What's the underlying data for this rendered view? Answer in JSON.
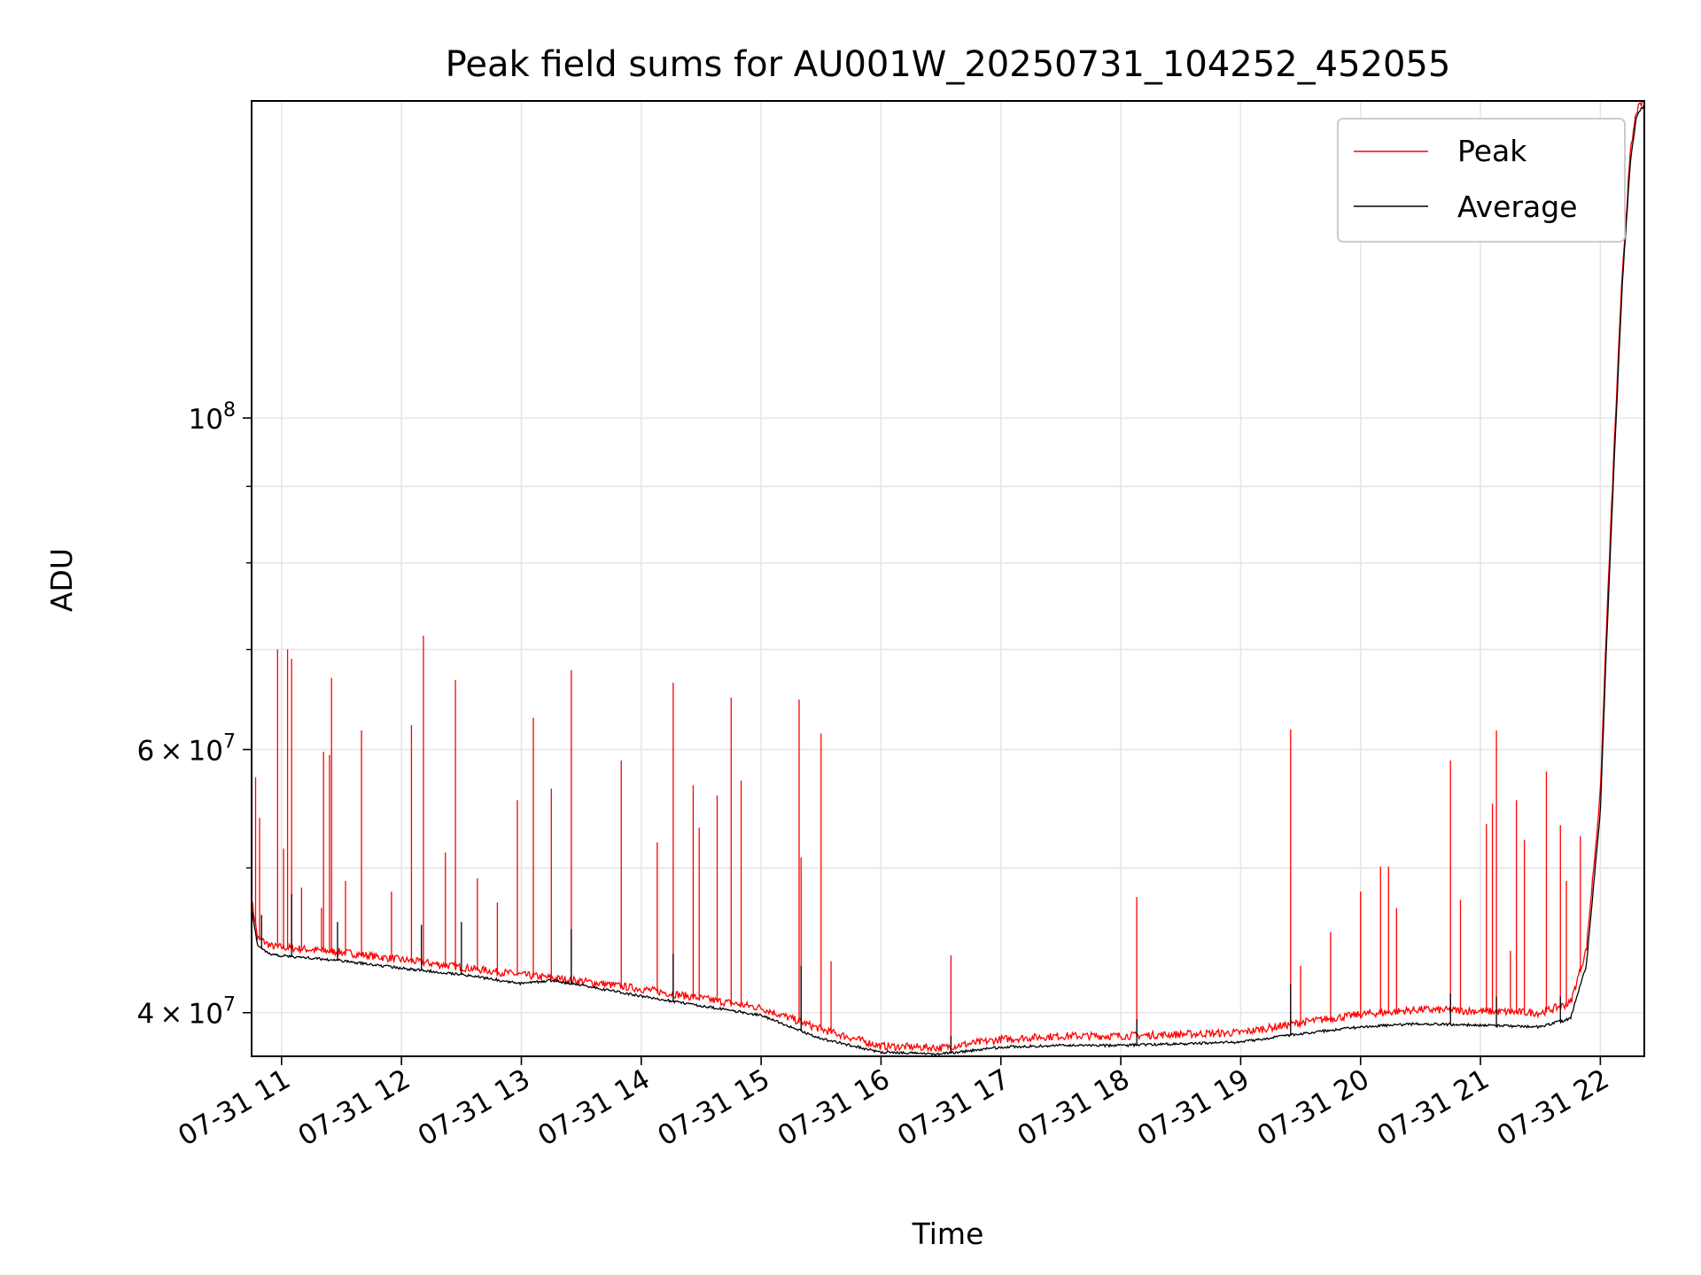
{
  "chart_data": {
    "type": "line",
    "title": "Peak field sums for AU001W_20250731_104252_452055",
    "xlabel": "Time",
    "ylabel": "ADU",
    "y_scale": "log",
    "grid": true,
    "legend_position": "top-right",
    "x_range": [
      "2025-07-31 10:45",
      "2025-07-31 22:22"
    ],
    "ylim": [
      37400000,
      163000000
    ],
    "x_ticks": [
      {
        "t": "2025-07-31 11:00",
        "label": "07-31 11"
      },
      {
        "t": "2025-07-31 12:00",
        "label": "07-31 12"
      },
      {
        "t": "2025-07-31 13:00",
        "label": "07-31 13"
      },
      {
        "t": "2025-07-31 14:00",
        "label": "07-31 14"
      },
      {
        "t": "2025-07-31 15:00",
        "label": "07-31 15"
      },
      {
        "t": "2025-07-31 16:00",
        "label": "07-31 16"
      },
      {
        "t": "2025-07-31 17:00",
        "label": "07-31 17"
      },
      {
        "t": "2025-07-31 18:00",
        "label": "07-31 18"
      },
      {
        "t": "2025-07-31 19:00",
        "label": "07-31 19"
      },
      {
        "t": "2025-07-31 20:00",
        "label": "07-31 20"
      },
      {
        "t": "2025-07-31 21:00",
        "label": "07-31 21"
      },
      {
        "t": "2025-07-31 22:00",
        "label": "07-31 22"
      }
    ],
    "y_major_ticks": [
      {
        "value": 40000000,
        "mantissa": "4",
        "exp": "7"
      },
      {
        "value": 60000000,
        "mantissa": "6",
        "exp": "7"
      },
      {
        "value": 100000000,
        "mantissa": "",
        "exp": "8"
      }
    ],
    "y_minor_ticks": [
      50000000,
      70000000,
      80000000,
      90000000
    ],
    "series": [
      {
        "name": "Peak",
        "color": "#ff0000",
        "baseline": [
          [
            "2025-07-31 10:45",
            47500000
          ],
          [
            "2025-07-31 10:48",
            44800000
          ],
          [
            "2025-07-31 10:55",
            44200000
          ],
          [
            "2025-07-31 11:30",
            43800000
          ],
          [
            "2025-07-31 12:00",
            43300000
          ],
          [
            "2025-07-31 12:30",
            42800000
          ],
          [
            "2025-07-31 13:00",
            42300000
          ],
          [
            "2025-07-31 13:30",
            41900000
          ],
          [
            "2025-07-31 14:00",
            41400000
          ],
          [
            "2025-07-31 14:30",
            40800000
          ],
          [
            "2025-07-31 15:00",
            40200000
          ],
          [
            "2025-07-31 15:30",
            38900000
          ],
          [
            "2025-07-31 16:00",
            37900000
          ],
          [
            "2025-07-31 16:30",
            37800000
          ],
          [
            "2025-07-31 17:00",
            38300000
          ],
          [
            "2025-07-31 17:30",
            38500000
          ],
          [
            "2025-07-31 18:00",
            38500000
          ],
          [
            "2025-07-31 18:30",
            38600000
          ],
          [
            "2025-07-31 19:00",
            38700000
          ],
          [
            "2025-07-31 19:30",
            39300000
          ],
          [
            "2025-07-31 20:00",
            39800000
          ],
          [
            "2025-07-31 20:30",
            40100000
          ],
          [
            "2025-07-31 21:00",
            40000000
          ],
          [
            "2025-07-31 21:30",
            39900000
          ],
          [
            "2025-07-31 21:45",
            40500000
          ],
          [
            "2025-07-31 21:53",
            44000000
          ],
          [
            "2025-07-31 22:00",
            56000000
          ],
          [
            "2025-07-31 22:03",
            72000000
          ],
          [
            "2025-07-31 22:07",
            96000000
          ],
          [
            "2025-07-31 22:11",
            125000000
          ],
          [
            "2025-07-31 22:15",
            150000000
          ],
          [
            "2025-07-31 22:18",
            160000000
          ],
          [
            "2025-07-31 22:22",
            163000000
          ]
        ],
        "spikes": [
          [
            "2025-07-31 10:47",
            57500000
          ],
          [
            "2025-07-31 10:49",
            54000000
          ],
          [
            "2025-07-31 10:58",
            70000000
          ],
          [
            "2025-07-31 11:01",
            51500000
          ],
          [
            "2025-07-31 11:03",
            70000000
          ],
          [
            "2025-07-31 11:05",
            69000000
          ],
          [
            "2025-07-31 11:10",
            48500000
          ],
          [
            "2025-07-31 11:20",
            47000000
          ],
          [
            "2025-07-31 11:21",
            59800000
          ],
          [
            "2025-07-31 11:24",
            59500000
          ],
          [
            "2025-07-31 11:25",
            67000000
          ],
          [
            "2025-07-31 11:32",
            49000000
          ],
          [
            "2025-07-31 11:40",
            61800000
          ],
          [
            "2025-07-31 11:55",
            48200000
          ],
          [
            "2025-07-31 12:05",
            62300000
          ],
          [
            "2025-07-31 12:11",
            71500000
          ],
          [
            "2025-07-31 12:22",
            51200000
          ],
          [
            "2025-07-31 12:27",
            66800000
          ],
          [
            "2025-07-31 12:38",
            49200000
          ],
          [
            "2025-07-31 12:48",
            47400000
          ],
          [
            "2025-07-31 12:58",
            55500000
          ],
          [
            "2025-07-31 13:06",
            63000000
          ],
          [
            "2025-07-31 13:15",
            56500000
          ],
          [
            "2025-07-31 13:25",
            67800000
          ],
          [
            "2025-07-31 13:50",
            59000000
          ],
          [
            "2025-07-31 14:08",
            52000000
          ],
          [
            "2025-07-31 14:16",
            66500000
          ],
          [
            "2025-07-31 14:26",
            56800000
          ],
          [
            "2025-07-31 14:29",
            53200000
          ],
          [
            "2025-07-31 14:38",
            55900000
          ],
          [
            "2025-07-31 14:45",
            65000000
          ],
          [
            "2025-07-31 14:50",
            57200000
          ],
          [
            "2025-07-31 15:19",
            64800000
          ],
          [
            "2025-07-31 15:20",
            50800000
          ],
          [
            "2025-07-31 15:30",
            61500000
          ],
          [
            "2025-07-31 15:35",
            43300000
          ],
          [
            "2025-07-31 16:35",
            43700000
          ],
          [
            "2025-07-31 18:08",
            47800000
          ],
          [
            "2025-07-31 19:25",
            61900000
          ],
          [
            "2025-07-31 19:30",
            43000000
          ],
          [
            "2025-07-31 19:45",
            45300000
          ],
          [
            "2025-07-31 20:00",
            48200000
          ],
          [
            "2025-07-31 20:10",
            50100000
          ],
          [
            "2025-07-31 20:14",
            50100000
          ],
          [
            "2025-07-31 20:18",
            47000000
          ],
          [
            "2025-07-31 20:45",
            59000000
          ],
          [
            "2025-07-31 20:50",
            47600000
          ],
          [
            "2025-07-31 21:03",
            53500000
          ],
          [
            "2025-07-31 21:06",
            55200000
          ],
          [
            "2025-07-31 21:08",
            61800000
          ],
          [
            "2025-07-31 21:15",
            44000000
          ],
          [
            "2025-07-31 21:18",
            55500000
          ],
          [
            "2025-07-31 21:22",
            52200000
          ],
          [
            "2025-07-31 21:33",
            58000000
          ],
          [
            "2025-07-31 21:40",
            53400000
          ],
          [
            "2025-07-31 21:43",
            49000000
          ],
          [
            "2025-07-31 21:50",
            52500000
          ]
        ]
      },
      {
        "name": "Average",
        "color": "#000000",
        "baseline": [
          [
            "2025-07-31 10:45",
            47000000
          ],
          [
            "2025-07-31 10:48",
            44300000
          ],
          [
            "2025-07-31 10:55",
            43700000
          ],
          [
            "2025-07-31 11:30",
            43300000
          ],
          [
            "2025-07-31 12:00",
            42800000
          ],
          [
            "2025-07-31 12:30",
            42400000
          ],
          [
            "2025-07-31 13:00",
            41800000
          ],
          [
            "2025-07-31 13:15",
            42000000
          ],
          [
            "2025-07-31 13:30",
            41700000
          ],
          [
            "2025-07-31 14:00",
            41000000
          ],
          [
            "2025-07-31 14:30",
            40400000
          ],
          [
            "2025-07-31 15:00",
            39800000
          ],
          [
            "2025-07-31 15:30",
            38400000
          ],
          [
            "2025-07-31 16:00",
            37600000
          ],
          [
            "2025-07-31 16:30",
            37500000
          ],
          [
            "2025-07-31 17:00",
            37900000
          ],
          [
            "2025-07-31 17:30",
            38000000
          ],
          [
            "2025-07-31 18:00",
            38000000
          ],
          [
            "2025-07-31 18:30",
            38100000
          ],
          [
            "2025-07-31 19:00",
            38200000
          ],
          [
            "2025-07-31 19:30",
            38700000
          ],
          [
            "2025-07-31 20:00",
            39100000
          ],
          [
            "2025-07-31 20:30",
            39300000
          ],
          [
            "2025-07-31 21:00",
            39200000
          ],
          [
            "2025-07-31 21:30",
            39100000
          ],
          [
            "2025-07-31 21:45",
            39600000
          ],
          [
            "2025-07-31 21:53",
            43000000
          ],
          [
            "2025-07-31 22:00",
            54500000
          ],
          [
            "2025-07-31 22:03",
            70000000
          ],
          [
            "2025-07-31 22:07",
            94000000
          ],
          [
            "2025-07-31 22:11",
            123000000
          ],
          [
            "2025-07-31 22:15",
            148000000
          ],
          [
            "2025-07-31 22:18",
            159000000
          ],
          [
            "2025-07-31 22:22",
            162000000
          ]
        ],
        "spikes": [
          [
            "2025-07-31 10:50",
            46500000
          ],
          [
            "2025-07-31 11:05",
            48000000
          ],
          [
            "2025-07-31 11:28",
            46000000
          ],
          [
            "2025-07-31 12:10",
            45800000
          ],
          [
            "2025-07-31 12:30",
            46000000
          ],
          [
            "2025-07-31 13:25",
            45500000
          ],
          [
            "2025-07-31 14:16",
            43800000
          ],
          [
            "2025-07-31 15:20",
            43000000
          ],
          [
            "2025-07-31 16:35",
            38600000
          ],
          [
            "2025-07-31 18:08",
            39600000
          ],
          [
            "2025-07-31 19:25",
            41800000
          ],
          [
            "2025-07-31 20:45",
            41200000
          ],
          [
            "2025-07-31 21:08",
            41000000
          ],
          [
            "2025-07-31 21:40",
            41000000
          ]
        ]
      }
    ]
  }
}
